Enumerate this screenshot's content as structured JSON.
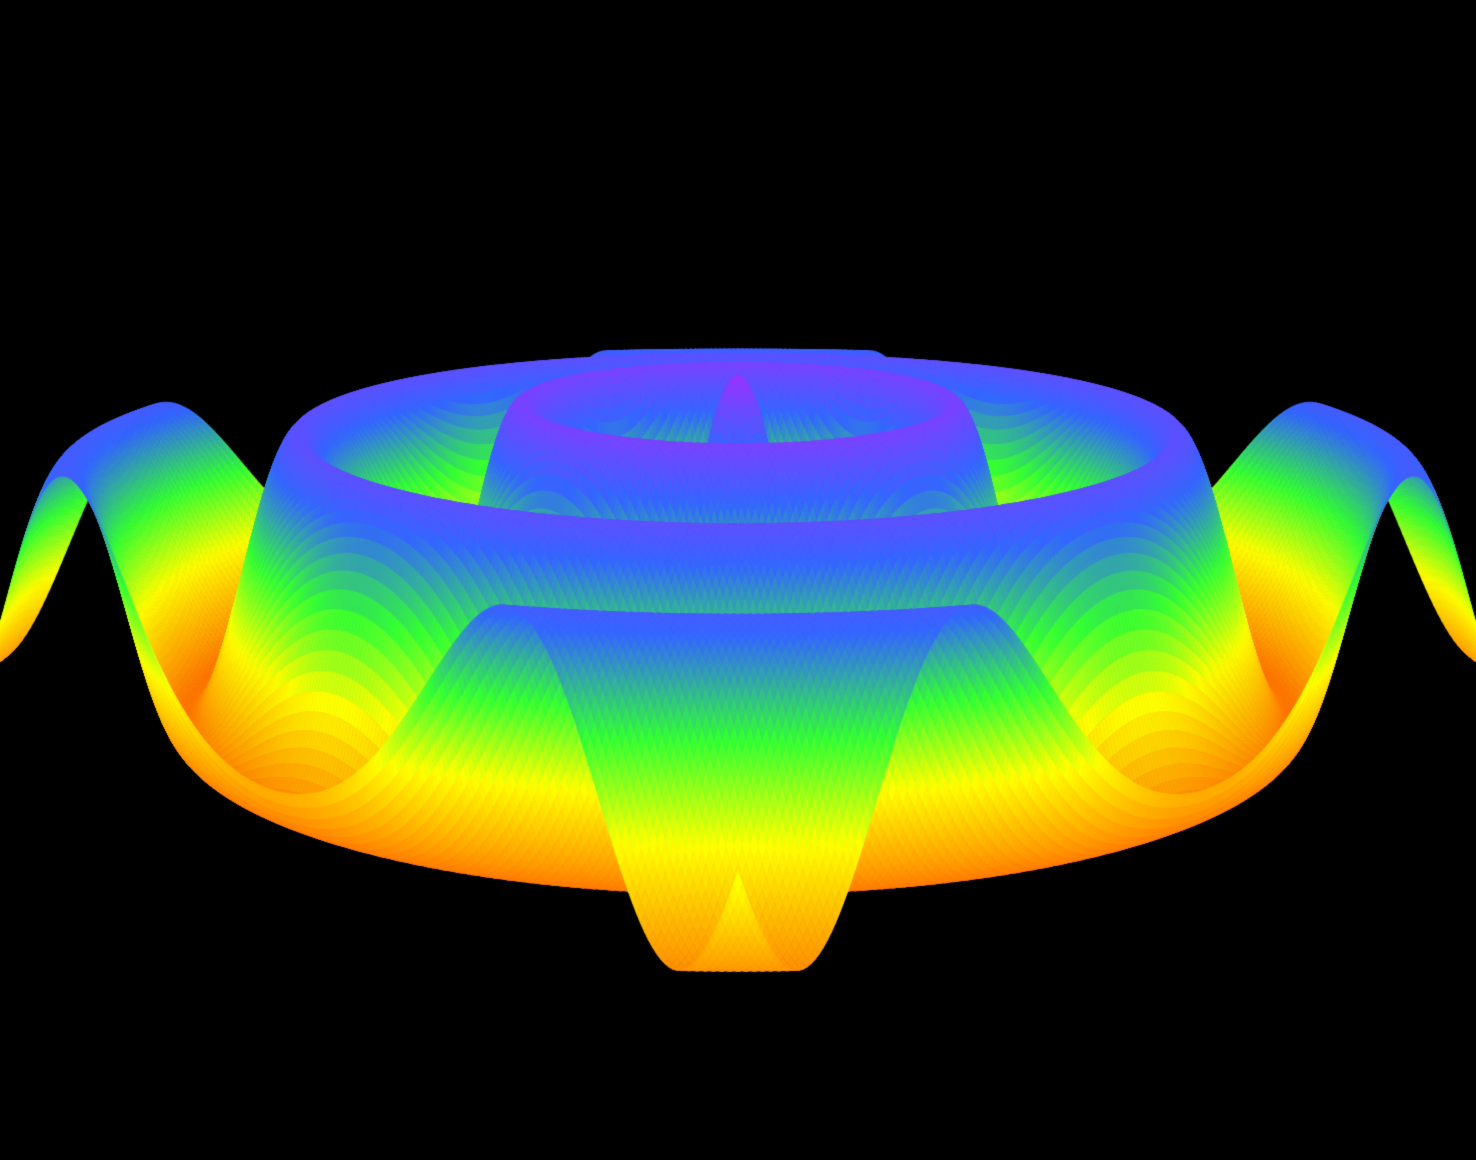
{
  "scene": {
    "subject": "ripple-surface",
    "background_color": "#000000",
    "colormap": {
      "stops": [
        "#ff2200",
        "#ff9900",
        "#ffff00",
        "#33ff33",
        "#3366ff",
        "#9933ff"
      ]
    },
    "surface": {
      "function": "radial-sine-ripple",
      "ring_count": 4,
      "has_central_spike": true
    }
  }
}
